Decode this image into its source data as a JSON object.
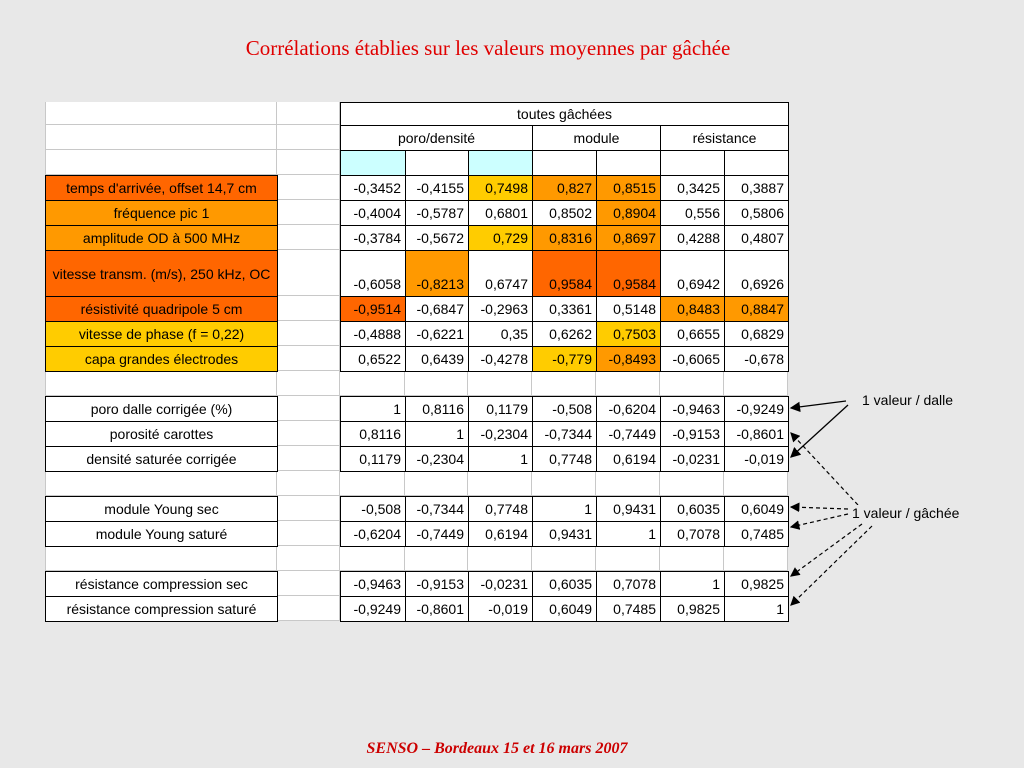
{
  "title": "Corrélations établies sur les valeurs moyennes par gâchée",
  "table": {
    "header": "toutes gâchées",
    "groups": [
      "poro/densité",
      "module",
      "résistance"
    ],
    "rows": [
      {
        "label": "temps d'arrivée, offset 14,7 cm",
        "values": [
          "-0,3452",
          "-0,4155",
          "0,7498",
          "0,827",
          "0,8515",
          "0,3425",
          "0,3887"
        ]
      },
      {
        "label": "fréquence pic 1",
        "values": [
          "-0,4004",
          "-0,5787",
          "0,6801",
          "0,8502",
          "0,8904",
          "0,556",
          "0,5806"
        ]
      },
      {
        "label": "amplitude OD à 500 MHz",
        "values": [
          "-0,3784",
          "-0,5672",
          "0,729",
          "0,8316",
          "0,8697",
          "0,4288",
          "0,4807"
        ]
      },
      {
        "label": "vitesse transm. (m/s), 250 kHz, OC",
        "values": [
          "-0,6058",
          "-0,8213",
          "0,6747",
          "0,9584",
          "0,9584",
          "0,6942",
          "0,6926"
        ]
      },
      {
        "label": "résistivité quadripole 5 cm",
        "values": [
          "-0,9514",
          "-0,6847",
          "-0,2963",
          "0,3361",
          "0,5148",
          "0,8483",
          "0,8847"
        ]
      },
      {
        "label": "vitesse de phase (f = 0,22)",
        "values": [
          "-0,4888",
          "-0,6221",
          "0,35",
          "0,6262",
          "0,7503",
          "0,6655",
          "0,6829"
        ]
      },
      {
        "label": "capa grandes électrodes",
        "values": [
          "0,6522",
          "0,6439",
          "-0,4278",
          "-0,779",
          "-0,8493",
          "-0,6065",
          "-0,678"
        ]
      },
      {
        "label": "poro dalle corrigée (%)",
        "values": [
          "1",
          "0,8116",
          "0,1179",
          "-0,508",
          "-0,6204",
          "-0,9463",
          "-0,9249"
        ]
      },
      {
        "label": "porosité carottes",
        "values": [
          "0,8116",
          "1",
          "-0,2304",
          "-0,7344",
          "-0,7449",
          "-0,9153",
          "-0,8601"
        ]
      },
      {
        "label": "densité saturée corrigée",
        "values": [
          "0,1179",
          "-0,2304",
          "1",
          "0,7748",
          "0,6194",
          "-0,0231",
          "-0,019"
        ]
      },
      {
        "label": "module Young sec",
        "values": [
          "-0,508",
          "-0,7344",
          "0,7748",
          "1",
          "0,9431",
          "0,6035",
          "0,6049"
        ]
      },
      {
        "label": "module Young saturé",
        "values": [
          "-0,6204",
          "-0,7449",
          "0,6194",
          "0,9431",
          "1",
          "0,7078",
          "0,7485"
        ]
      },
      {
        "label": "résistance compression sec",
        "values": [
          "-0,9463",
          "-0,9153",
          "-0,0231",
          "0,6035",
          "0,7078",
          "1",
          "0,9825"
        ]
      },
      {
        "label": "résistance compression saturé",
        "values": [
          "-0,9249",
          "-0,8601",
          "-0,019",
          "0,6049",
          "0,7485",
          "0,9825",
          "1"
        ]
      }
    ]
  },
  "annotations": [
    "1 valeur / dalle",
    "1 valeur / gâchée"
  ],
  "footer": "SENSO – Bordeaux 15 et 16 mars 2007"
}
